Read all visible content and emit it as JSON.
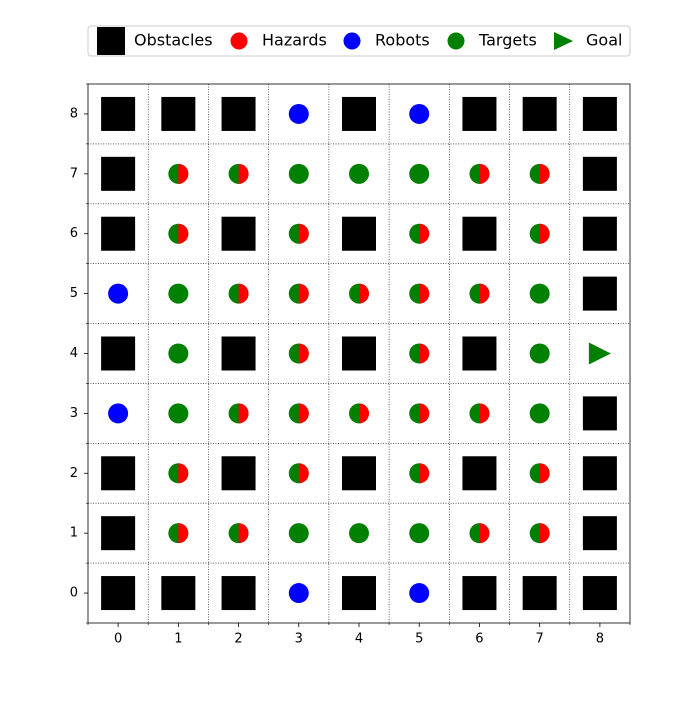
{
  "chart_data": {
    "type": "scatter",
    "series": [
      {
        "name": "Obstacles",
        "color": "#000000",
        "marker": "square",
        "x": [
          0,
          1,
          2,
          4,
          6,
          7,
          8,
          0,
          8,
          0,
          2,
          4,
          6,
          8,
          8,
          0,
          2,
          4,
          6,
          8,
          0,
          2,
          4,
          6,
          8,
          0,
          8,
          0,
          1,
          2,
          4,
          6,
          7,
          8
        ],
        "y": [
          8,
          8,
          8,
          8,
          8,
          8,
          8,
          7,
          7,
          6,
          6,
          6,
          6,
          6,
          5,
          4,
          4,
          4,
          4,
          3,
          2,
          2,
          2,
          2,
          2,
          1,
          1,
          0,
          0,
          0,
          0,
          0,
          0,
          0
        ]
      },
      {
        "name": "Hazards",
        "color": "#ff0000",
        "marker": "right-half-circle",
        "x": [
          1,
          2,
          6,
          7,
          1,
          3,
          5,
          7,
          2,
          3,
          4,
          5,
          6,
          3,
          5,
          2,
          3,
          4,
          5,
          6,
          1,
          3,
          5,
          7,
          1,
          2,
          6,
          7
        ],
        "y": [
          7,
          7,
          7,
          7,
          6,
          6,
          6,
          6,
          5,
          5,
          5,
          5,
          5,
          4,
          4,
          3,
          3,
          3,
          3,
          3,
          2,
          2,
          2,
          2,
          1,
          1,
          1,
          1
        ]
      },
      {
        "name": "Robots",
        "color": "#0000ff",
        "marker": "circle",
        "x": [
          3,
          5,
          0,
          0,
          3,
          5
        ],
        "y": [
          8,
          8,
          5,
          3,
          0,
          0
        ]
      },
      {
        "name": "Targets",
        "color": "#008000",
        "marker": "circle",
        "x": [
          1,
          2,
          3,
          4,
          5,
          6,
          7,
          1,
          3,
          5,
          7,
          1,
          2,
          3,
          4,
          5,
          6,
          7,
          1,
          3,
          5,
          7,
          1,
          2,
          3,
          4,
          5,
          6,
          7,
          1,
          3,
          5,
          7,
          1,
          2,
          3,
          4,
          5,
          6,
          7
        ],
        "y": [
          7,
          7,
          7,
          7,
          7,
          7,
          7,
          6,
          6,
          6,
          6,
          5,
          5,
          5,
          5,
          5,
          5,
          5,
          4,
          4,
          4,
          4,
          3,
          3,
          3,
          3,
          3,
          3,
          3,
          2,
          2,
          2,
          2,
          1,
          1,
          1,
          1,
          1,
          1,
          1
        ]
      },
      {
        "name": "Goal",
        "color": "#008000",
        "marker": "triangle-right",
        "x": [
          8
        ],
        "y": [
          4
        ]
      }
    ],
    "xlim": [
      -0.5,
      8.5
    ],
    "ylim": [
      -0.5,
      8.5
    ],
    "xticks": [
      0,
      1,
      2,
      3,
      4,
      5,
      6,
      7,
      8
    ],
    "yticks": [
      0,
      1,
      2,
      3,
      4,
      5,
      6,
      7,
      8
    ],
    "xminorticks": [
      -0.5,
      0.5,
      1.5,
      2.5,
      3.5,
      4.5,
      5.5,
      6.5,
      7.5,
      8.5
    ],
    "yminorticks": [
      -0.5,
      0.5,
      1.5,
      2.5,
      3.5,
      4.5,
      5.5,
      6.5,
      7.5,
      8.5
    ],
    "grid": "minor",
    "legend": "top"
  }
}
